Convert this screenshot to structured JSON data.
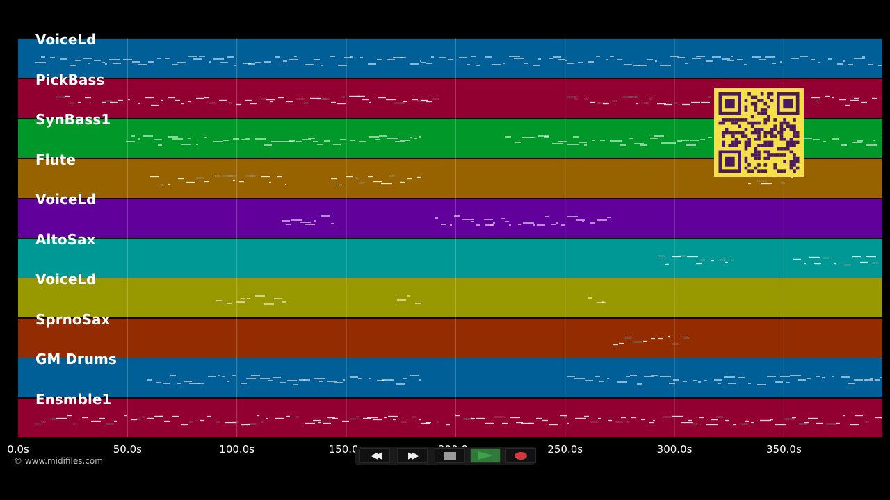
{
  "tracks": [
    {
      "name": "VoiceLd",
      "color": "#005f96"
    },
    {
      "name": "PickBass",
      "color": "#910031"
    },
    {
      "name": "SynBass1",
      "color": "#009829"
    },
    {
      "name": "Flute",
      "color": "#976200"
    },
    {
      "name": "VoiceLd",
      "color": "#62009c"
    },
    {
      "name": "AltoSax",
      "color": "#009894"
    },
    {
      "name": "VoiceLd",
      "color": "#989800"
    },
    {
      "name": "SprnoSax",
      "color": "#932c00"
    },
    {
      "name": "GM Drums",
      "color": "#005f96"
    },
    {
      "name": "Ensmble1",
      "color": "#910031"
    }
  ],
  "timeline": {
    "ticks": [
      "0.0s",
      "50.0s",
      "100.0s",
      "150.0s",
      "200.0s",
      "250.0s",
      "300.0s",
      "350.0s"
    ],
    "tick_values": [
      0,
      50,
      100,
      150,
      200,
      250,
      300,
      350
    ],
    "max_seconds": 395
  },
  "copyright": "© www.midifiles.com",
  "transport": {
    "buttons": [
      {
        "name": "rewind-button",
        "icon": "rewind-icon",
        "glyph": "◀◀"
      },
      {
        "name": "fast-forward-button",
        "icon": "fast-forward-icon",
        "glyph": "▶▶"
      },
      {
        "name": "stop-button",
        "icon": "stop-icon",
        "glyph": ""
      },
      {
        "name": "play-button",
        "icon": "play-icon",
        "glyph": ""
      },
      {
        "name": "record-button",
        "icon": "record-icon",
        "glyph": ""
      }
    ],
    "play_color": "#3fa34d",
    "record_color": "#d9363e"
  },
  "qr": {
    "fg": "#4a1a5e",
    "bg": "#f5e04a"
  }
}
